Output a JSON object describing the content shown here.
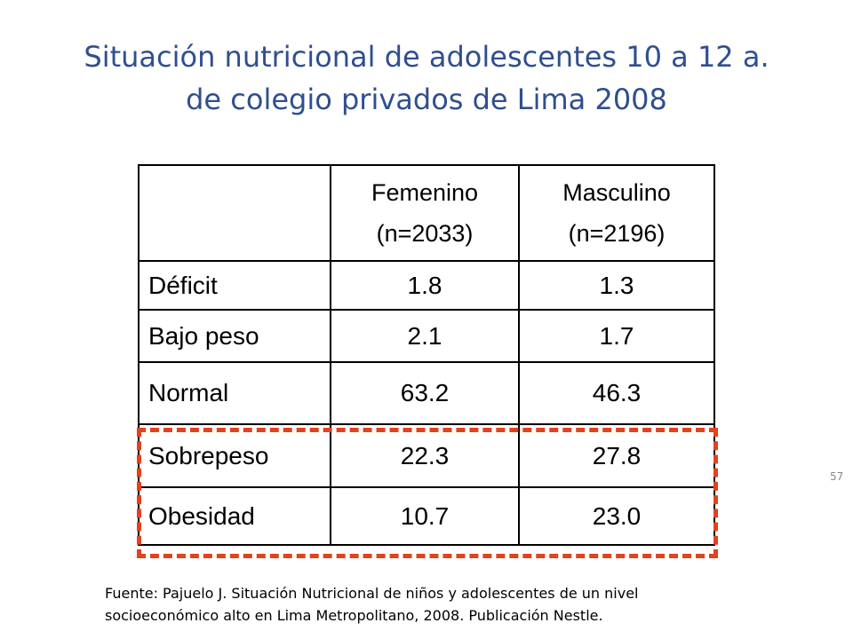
{
  "slide": {
    "title_line1": "Situación nutricional de adolescentes 10 a 12 a.",
    "title_line2": "de colegio privados de Lima 2008",
    "page_number": "57"
  },
  "table": {
    "header": {
      "col0": "",
      "col1_line1": "Femenino",
      "col1_line2": "(n=2033)",
      "col2_line1": "Masculino",
      "col2_line2": "(n=2196)"
    },
    "rows": [
      {
        "label": "Déficit",
        "femenino": "1.8",
        "masculino": "1.3"
      },
      {
        "label": "Bajo peso",
        "femenino": "2.1",
        "masculino": "1.7"
      },
      {
        "label": "Normal",
        "femenino": "63.2",
        "masculino": "46.3"
      },
      {
        "label": "Sobrepeso",
        "femenino": "22.3",
        "masculino": "27.8"
      },
      {
        "label": "Obesidad",
        "femenino": "10.7",
        "masculino": "23.0"
      }
    ],
    "highlight_color": "#e2421c"
  },
  "source": {
    "line1": "Fuente: Pajuelo J. Situación Nutricional de niños y adolescentes de un nivel",
    "line2": "socioeconómico alto en Lima Metropolitano, 2008. Publicación Nestle."
  },
  "colors": {
    "title": "#2f4f8f",
    "text": "#000000",
    "background": "#ffffff"
  }
}
